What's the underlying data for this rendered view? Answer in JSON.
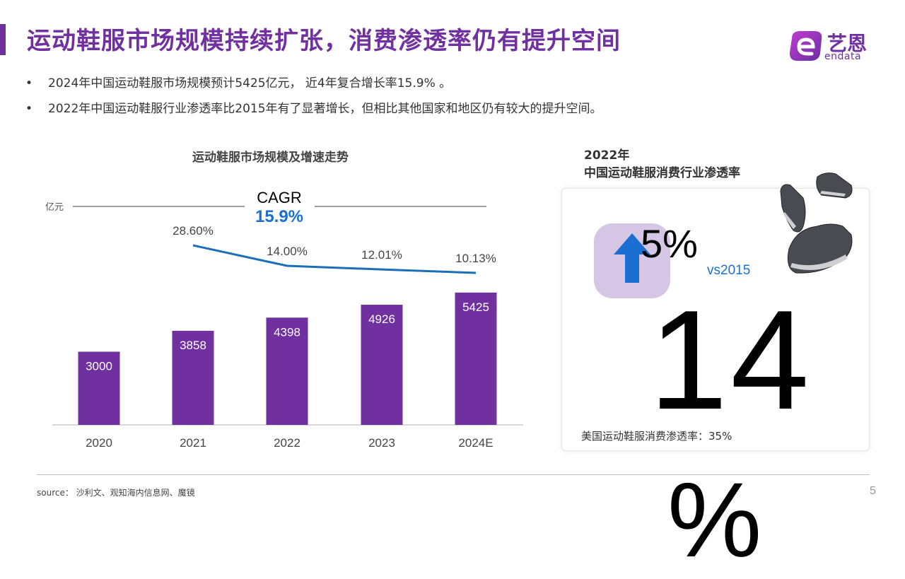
{
  "title": "运动鞋服市场规模持续扩张，消费渗透率仍有提升空间",
  "logo": {
    "name": "艺恩",
    "sub": "endata"
  },
  "bullets": [
    "2024年中国运动鞋服市场规模预计5425亿元， 近4年复合增长率15.9% 。",
    "2022年中国运动鞋服行业渗透率比2015年有了显著增长，但相比其他国家和地区仍有较大的提升空间。"
  ],
  "bullet_symbol": "•",
  "chart_title": "运动鞋服市场规模及增速走势",
  "chart_data": {
    "type": "bar",
    "title": "运动鞋服市场规模及增速走势",
    "ylabel": "亿元",
    "categories": [
      "2020",
      "2021",
      "2022",
      "2023",
      "2024E"
    ],
    "series": [
      {
        "type": "bar",
        "values": [
          3000,
          3858,
          4398,
          4926,
          5425
        ],
        "labels": [
          "3000",
          "3858",
          "4398",
          "4926",
          "5425"
        ],
        "color": "#7030a0"
      },
      {
        "type": "line",
        "values": [
          null,
          28.6,
          14.0,
          12.01,
          10.13
        ],
        "labels": [
          "",
          "28.60%",
          "14.00%",
          "12.01%",
          "10.13%"
        ],
        "color": "#1a6fb8"
      }
    ],
    "cagr_label": "CAGR",
    "cagr_value": "15.9%",
    "grid": false
  },
  "right_panel": {
    "title_line1": "2022年",
    "title_line2": "中国运动鞋服消费行业渗透率",
    "delta": "5%",
    "vs": "vs2015",
    "big_number": "14",
    "big_unit": "%",
    "usa_text": "美国运动鞋服消费渗透率：35%"
  },
  "source": "source： 沙利文、观知海内信息网、魔镜",
  "page_number": "5"
}
